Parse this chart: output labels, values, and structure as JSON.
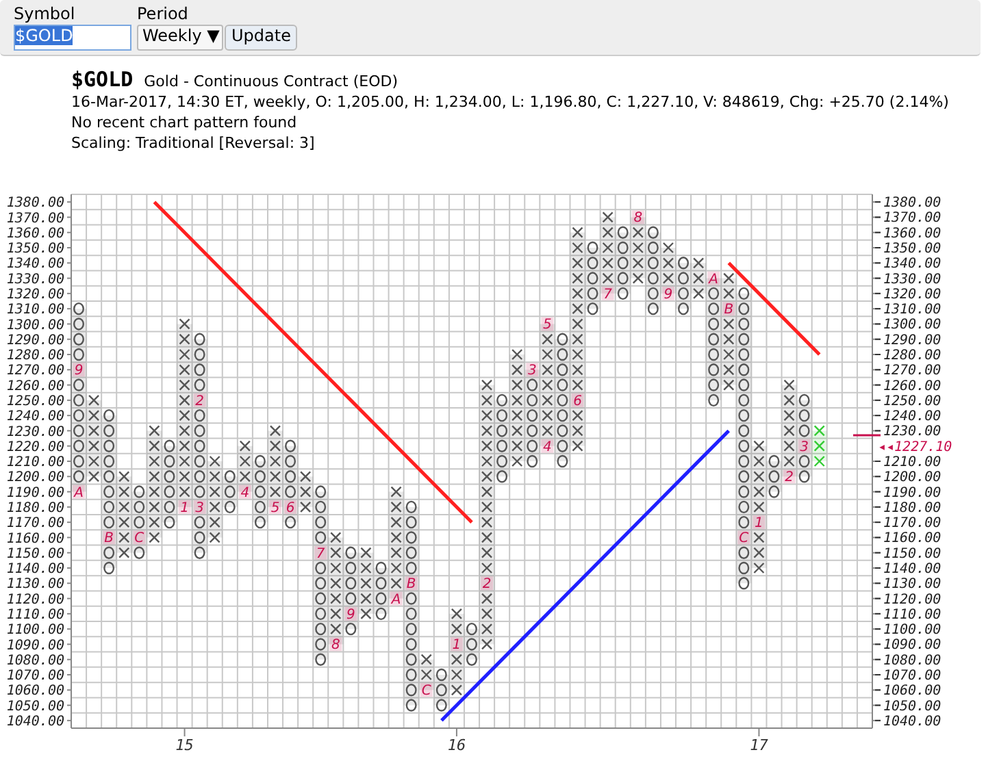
{
  "chart_data": {
    "type": "bar",
    "title": "$GOLD",
    "subtitle": "Gold - Continuous Contract (EOD)",
    "annotations": [
      "Symbol",
      "Period",
      "$GOLD",
      "Weekly ▼",
      "Update",
      "16-Mar-2017, 14:30 ET, weekly, O: 1,205.00, H: 1,234.00, L: 1,196.80, C: 1,227.10, V: 848619, Chg: +25.70 (2.14%)",
      "No recent chart pattern found",
      "Scaling: Traditional [Reversal: 3]",
      "9",
      "B",
      "C",
      "1",
      "2",
      "4",
      "5",
      "6",
      "7",
      "8",
      "9",
      "A",
      "B",
      "C",
      "1",
      "2",
      "3",
      "4",
      "6",
      "7",
      "8",
      "9",
      "A",
      "B",
      "C",
      "1",
      "2",
      "3",
      "A",
      "3",
      "5"
    ],
    "ref_lines": [
      {
        "axis": "y2",
        "value": 1227.1,
        "label": "◂◂1227.10",
        "color": "#c8104e"
      }
    ],
    "categories": [
      null,
      null,
      null,
      null,
      null,
      null,
      null,
      "15",
      null,
      null,
      null,
      null,
      null,
      null,
      null,
      null,
      null,
      null,
      null,
      null,
      null,
      null,
      null,
      null,
      null,
      "16",
      null,
      null,
      null,
      null,
      null,
      null,
      null,
      null,
      null,
      null,
      null,
      null,
      null,
      null,
      null,
      null,
      null,
      null,
      null,
      "17",
      null,
      null,
      null,
      null,
      null,
      null,
      null
    ],
    "ylim": [
      1035,
      1385
    ],
    "yticks": [
      {
        "value": 1040,
        "label": "1040.00"
      },
      {
        "value": 1050,
        "label": "1050.00"
      },
      {
        "value": 1060,
        "label": "1060.00"
      },
      {
        "value": 1070,
        "label": "1070.00"
      },
      {
        "value": 1080,
        "label": "1080.00"
      },
      {
        "value": 1090,
        "label": "1090.00"
      },
      {
        "value": 1100,
        "label": "1100.00"
      },
      {
        "value": 1110,
        "label": "1110.00"
      },
      {
        "value": 1120,
        "label": "1120.00"
      },
      {
        "value": 1130,
        "label": "1130.00"
      },
      {
        "value": 1140,
        "label": "1140.00"
      },
      {
        "value": 1150,
        "label": "1150.00"
      },
      {
        "value": 1160,
        "label": "1160.00"
      },
      {
        "value": 1170,
        "label": "1170.00"
      },
      {
        "value": 1180,
        "label": "1180.00"
      },
      {
        "value": 1190,
        "label": "1190.00"
      },
      {
        "value": 1200,
        "label": "1200.00"
      },
      {
        "value": 1210,
        "label": "1210.00"
      },
      {
        "value": 1220,
        "label": "1220.00"
      },
      {
        "value": 1230,
        "label": "1230.00"
      },
      {
        "value": 1240,
        "label": "1240.00"
      },
      {
        "value": 1250,
        "label": "1250.00"
      },
      {
        "value": 1260,
        "label": "1260.00"
      },
      {
        "value": 1270,
        "label": "1270.00"
      },
      {
        "value": 1280,
        "label": "1280.00"
      },
      {
        "value": 1290,
        "label": "1290.00"
      },
      {
        "value": 1300,
        "label": "1300.00"
      },
      {
        "value": 1310,
        "label": "1310.00"
      },
      {
        "value": 1320,
        "label": "1320.00"
      },
      {
        "value": 1330,
        "label": "1330.00"
      },
      {
        "value": 1340,
        "label": "1340.00"
      },
      {
        "value": 1350,
        "label": "1350.00"
      },
      {
        "value": 1360,
        "label": "1360.00"
      },
      {
        "value": 1370,
        "label": "1370.00"
      },
      {
        "value": 1380,
        "label": "1380.00"
      }
    ],
    "y2lim": [
      1035,
      1385
    ],
    "y2ticks": [
      {
        "value": 1040,
        "label": "1040.00"
      },
      {
        "value": 1050,
        "label": "1050.00"
      },
      {
        "value": 1060,
        "label": "1060.00"
      },
      {
        "value": 1070,
        "label": "1070.00"
      },
      {
        "value": 1080,
        "label": "1080.00"
      },
      {
        "value": 1090,
        "label": "1090.00"
      },
      {
        "value": 1100,
        "label": "1100.00"
      },
      {
        "value": 1110,
        "label": "1110.00"
      },
      {
        "value": 1120,
        "label": "1120.00"
      },
      {
        "value": 1130,
        "label": "1130.00"
      },
      {
        "value": 1140,
        "label": "1140.00"
      },
      {
        "value": 1150,
        "label": "1150.00"
      },
      {
        "value": 1160,
        "label": "1160.00"
      },
      {
        "value": 1170,
        "label": "1170.00"
      },
      {
        "value": 1180,
        "label": "1180.00"
      },
      {
        "value": 1190,
        "label": "1190.00"
      },
      {
        "value": 1200,
        "label": "1200.00"
      },
      {
        "value": 1210,
        "label": "1210.00"
      },
      {
        "value": 1230,
        "label": "1230.00"
      },
      {
        "value": 1240,
        "label": "1240.00"
      },
      {
        "value": 1250,
        "label": "1250.00"
      },
      {
        "value": 1260,
        "label": "1260.00"
      },
      {
        "value": 1270,
        "label": "1270.00"
      },
      {
        "value": 1280,
        "label": "1280.00"
      },
      {
        "value": 1290,
        "label": "1290.00"
      },
      {
        "value": 1300,
        "label": "1300.00"
      },
      {
        "value": 1310,
        "label": "1310.00"
      },
      {
        "value": 1320,
        "label": "1320.00"
      },
      {
        "value": 1330,
        "label": "1330.00"
      },
      {
        "value": 1340,
        "label": "1340.00"
      },
      {
        "value": 1350,
        "label": "1350.00"
      },
      {
        "value": 1360,
        "label": "1360.00"
      },
      {
        "value": 1370,
        "label": "1370.00"
      },
      {
        "value": 1380,
        "label": "1380.00"
      }
    ],
    "grid": true,
    "series": [
      {
        "marker": "cross",
        "color": "#555555",
        "values": [
          null,
          50,
          null,
          50,
          null,
          70,
          null,
          120,
          null,
          50,
          null,
          30,
          null,
          50,
          null,
          20,
          null,
          70,
          null,
          40,
          null,
          70,
          null,
          20,
          null,
          50,
          null,
          170,
          null,
          70,
          null,
          80,
          null,
          140,
          null,
          50,
          null,
          40,
          null,
          30,
          null,
          20,
          null,
          70,
          null,
          80,
          null,
          60,
          null,
          20,
          null,
          null,
          null
        ],
        "base": [
          null,
          1200,
          null,
          1150,
          null,
          1160,
          null,
          1180,
          null,
          1160,
          null,
          1190,
          null,
          1180,
          null,
          1180,
          null,
          1090,
          null,
          1110,
          null,
          1120,
          null,
          1060,
          null,
          1060,
          null,
          1090,
          null,
          1210,
          null,
          1220,
          null,
          1220,
          null,
          1320,
          null,
          1330,
          null,
          1320,
          null,
          1320,
          null,
          1260,
          null,
          1140,
          null,
          1200,
          null,
          1210,
          null,
          null,
          null
        ],
        "colors": [
          null,
          "#555555",
          null,
          "#555555",
          null,
          "#555555",
          null,
          "#555555",
          null,
          "#555555",
          null,
          "#555555",
          null,
          "#555555",
          null,
          "#555555",
          null,
          "#555555",
          null,
          "#555555",
          null,
          "#555555",
          null,
          "#555555",
          null,
          "#555555",
          null,
          "#555555",
          null,
          "#555555",
          null,
          "#555555",
          null,
          "#555555",
          null,
          "#555555",
          null,
          "#555555",
          null,
          "#555555",
          null,
          "#555555",
          null,
          "#555555",
          null,
          "#555555",
          null,
          "#555555",
          null,
          "#33cc33",
          null,
          null,
          null
        ]
      },
      {
        "marker": "circle",
        "color": "#555555",
        "values": [
          120,
          null,
          100,
          null,
          40,
          null,
          50,
          null,
          140,
          null,
          20,
          null,
          40,
          null,
          50,
          null,
          110,
          null,
          50,
          null,
          30,
          null,
          130,
          null,
          20,
          null,
          20,
          null,
          50,
          null,
          60,
          null,
          80,
          null,
          40,
          null,
          40,
          null,
          50,
          null,
          30,
          null,
          80,
          null,
          190,
          null,
          20,
          null,
          50,
          null,
          null,
          null,
          null
        ],
        "base": [
          1190,
          null,
          1140,
          null,
          1150,
          null,
          1170,
          null,
          1150,
          null,
          1180,
          null,
          1170,
          null,
          1170,
          null,
          1080,
          null,
          1100,
          null,
          1110,
          null,
          1050,
          null,
          1050,
          null,
          1080,
          null,
          1200,
          null,
          1210,
          null,
          1210,
          null,
          1310,
          null,
          1320,
          null,
          1310,
          null,
          1310,
          null,
          1250,
          null,
          1130,
          null,
          1190,
          null,
          1200,
          null,
          null,
          null,
          null
        ]
      },
      {
        "type": "scatter",
        "marker": "square",
        "color": "#c8104e",
        "values": [
          1270,
          null,
          1160,
          null,
          1160,
          null,
          null,
          1180,
          1250,
          null,
          null,
          1190,
          null,
          1180,
          1180,
          null,
          1150,
          1090,
          1110,
          null,
          null,
          1120,
          1130,
          1060,
          null,
          1090,
          null,
          1130,
          null,
          null,
          1270,
          1220,
          null,
          1250,
          null,
          1320,
          null,
          1370,
          null,
          1320,
          null,
          null,
          1330,
          1310,
          1160,
          1170,
          null,
          1200,
          1220,
          null,
          null,
          null,
          null
        ]
      },
      {
        "type": "scatter",
        "marker": "square",
        "color": "#c8104e",
        "values": [
          1190,
          null,
          null,
          null,
          null,
          null,
          null,
          null,
          1180,
          null,
          null,
          null,
          null,
          null,
          null,
          null,
          null,
          null,
          null,
          null,
          null,
          null,
          null,
          null,
          null,
          null,
          null,
          null,
          null,
          null,
          null,
          1300,
          null,
          null,
          null,
          null,
          null,
          null,
          null,
          null,
          null,
          null,
          null,
          null,
          null,
          null,
          null,
          null,
          null,
          null,
          null,
          null,
          null
        ]
      },
      {
        "type": "line",
        "marker": "none",
        "color": "#ff2020",
        "values": [
          null,
          null,
          null,
          null,
          null,
          1380,
          null,
          null,
          null,
          null,
          null,
          null,
          null,
          null,
          null,
          null,
          null,
          null,
          null,
          null,
          null,
          null,
          null,
          null,
          null,
          null,
          1170,
          null,
          null,
          null,
          null,
          null,
          null,
          null,
          null,
          null,
          null,
          null,
          null,
          null,
          null,
          null,
          null,
          null,
          null,
          null,
          null,
          null,
          null,
          null,
          null,
          null,
          null
        ]
      },
      {
        "type": "line",
        "marker": "none",
        "color": "#ff2020",
        "values": [
          null,
          null,
          null,
          null,
          null,
          null,
          null,
          null,
          null,
          null,
          null,
          null,
          null,
          null,
          null,
          null,
          null,
          null,
          null,
          null,
          null,
          null,
          null,
          null,
          null,
          null,
          null,
          null,
          null,
          null,
          null,
          null,
          null,
          null,
          null,
          null,
          null,
          null,
          null,
          null,
          null,
          null,
          null,
          1340,
          null,
          null,
          null,
          null,
          null,
          1280,
          null,
          null,
          null
        ]
      },
      {
        "type": "line",
        "marker": "none",
        "color": "#2020ff",
        "values": [
          null,
          null,
          null,
          null,
          null,
          null,
          null,
          null,
          null,
          null,
          null,
          null,
          null,
          null,
          null,
          null,
          null,
          null,
          null,
          null,
          null,
          null,
          null,
          null,
          1040,
          null,
          null,
          null,
          null,
          null,
          null,
          null,
          null,
          null,
          null,
          null,
          null,
          null,
          null,
          null,
          null,
          null,
          null,
          1230,
          null,
          null,
          null,
          null,
          null,
          null,
          null,
          null,
          null
        ]
      }
    ]
  }
}
